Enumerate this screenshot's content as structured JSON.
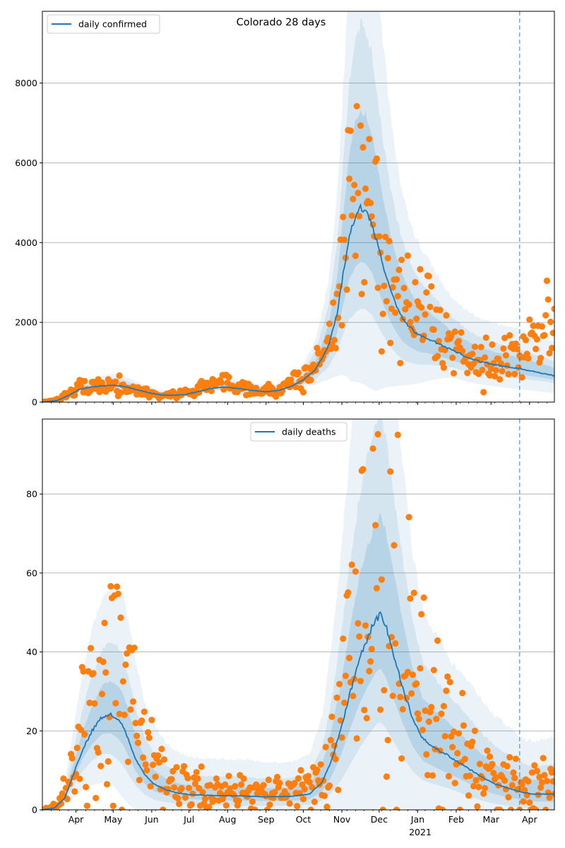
{
  "title": "Colorado 28 days",
  "colors": {
    "line": "#1f77b4",
    "band": "#1f77b4",
    "points": "#ff7f0e",
    "grid": "#b0b0b0",
    "vline": "#1f77b4"
  },
  "x_axis": {
    "range_days": [
      0,
      412
    ],
    "vline_day": 384,
    "month_ticks": [
      {
        "label": "Apr",
        "day": 27
      },
      {
        "label": "May",
        "day": 57
      },
      {
        "label": "Jun",
        "day": 88
      },
      {
        "label": "Jul",
        "day": 118
      },
      {
        "label": "Aug",
        "day": 149
      },
      {
        "label": "Sep",
        "day": 180
      },
      {
        "label": "Oct",
        "day": 210
      },
      {
        "label": "Nov",
        "day": 241
      },
      {
        "label": "Dec",
        "day": 271
      },
      {
        "label": "Jan",
        "day": 302
      },
      {
        "label": "Feb",
        "day": 333
      },
      {
        "label": "Mar",
        "day": 361
      },
      {
        "label": "Apr",
        "day": 392
      }
    ],
    "year_label": {
      "text": "2021",
      "day": 302
    }
  },
  "chart_data": [
    {
      "type": "line",
      "panel": "top",
      "title": "Colorado 28 days",
      "legend": [
        "daily confirmed"
      ],
      "legend_position": "top-left",
      "ylim": [
        0,
        9800
      ],
      "yticks": [
        0,
        2000,
        4000,
        6000,
        8000
      ],
      "grid": "y",
      "model_knots": [
        [
          0,
          0
        ],
        [
          12,
          40
        ],
        [
          20,
          150
        ],
        [
          30,
          320
        ],
        [
          40,
          380
        ],
        [
          50,
          410
        ],
        [
          57,
          420
        ],
        [
          65,
          400
        ],
        [
          75,
          320
        ],
        [
          85,
          240
        ],
        [
          95,
          180
        ],
        [
          105,
          170
        ],
        [
          115,
          190
        ],
        [
          125,
          260
        ],
        [
          135,
          340
        ],
        [
          145,
          380
        ],
        [
          150,
          370
        ],
        [
          160,
          330
        ],
        [
          170,
          290
        ],
        [
          180,
          260
        ],
        [
          190,
          290
        ],
        [
          200,
          390
        ],
        [
          210,
          560
        ],
        [
          220,
          820
        ],
        [
          230,
          1400
        ],
        [
          237,
          2200
        ],
        [
          242,
          3200
        ],
        [
          247,
          4200
        ],
        [
          252,
          4700
        ],
        [
          256,
          4850
        ],
        [
          260,
          4800
        ],
        [
          265,
          4500
        ],
        [
          270,
          3900
        ],
        [
          275,
          3300
        ],
        [
          280,
          2800
        ],
        [
          285,
          2400
        ],
        [
          290,
          2100
        ],
        [
          295,
          1900
        ],
        [
          300,
          1750
        ],
        [
          305,
          1650
        ],
        [
          310,
          1600
        ],
        [
          320,
          1450
        ],
        [
          330,
          1300
        ],
        [
          340,
          1150
        ],
        [
          350,
          1030
        ],
        [
          360,
          960
        ],
        [
          370,
          900
        ],
        [
          380,
          860
        ],
        [
          390,
          800
        ],
        [
          400,
          740
        ],
        [
          412,
          660
        ]
      ],
      "band_widths": [
        [
          [
            0,
            0.02
          ],
          [
            30,
            0.08
          ],
          [
            57,
            0.18
          ],
          [
            90,
            0.1
          ],
          [
            150,
            0.18
          ],
          [
            200,
            0.12
          ],
          [
            230,
            0.35
          ],
          [
            250,
            0.5
          ],
          [
            290,
            0.5
          ],
          [
            330,
            0.35
          ],
          [
            412,
            0.28
          ]
        ],
        [
          [
            0,
            0.05
          ],
          [
            30,
            0.18
          ],
          [
            57,
            0.35
          ],
          [
            90,
            0.25
          ],
          [
            150,
            0.32
          ],
          [
            200,
            0.25
          ],
          [
            230,
            0.7
          ],
          [
            250,
            0.95
          ],
          [
            290,
            0.9
          ],
          [
            330,
            0.6
          ],
          [
            412,
            0.5
          ]
        ],
        [
          [
            0,
            0.1
          ],
          [
            30,
            0.3
          ],
          [
            57,
            0.55
          ],
          [
            90,
            0.4
          ],
          [
            150,
            0.48
          ],
          [
            200,
            0.38
          ],
          [
            230,
            1.1
          ],
          [
            248,
            1.6
          ],
          [
            268,
            1.7
          ],
          [
            300,
            1.35
          ],
          [
            330,
            0.95
          ],
          [
            412,
            1.2
          ]
        ]
      ],
      "observed_knots": [
        [
          0,
          0
        ],
        [
          12,
          50
        ],
        [
          20,
          200
        ],
        [
          30,
          330
        ],
        [
          40,
          400
        ],
        [
          50,
          420
        ],
        [
          57,
          430
        ],
        [
          65,
          390
        ],
        [
          75,
          300
        ],
        [
          85,
          230
        ],
        [
          95,
          170
        ],
        [
          105,
          180
        ],
        [
          115,
          230
        ],
        [
          125,
          330
        ],
        [
          135,
          440
        ],
        [
          145,
          520
        ],
        [
          150,
          480
        ],
        [
          160,
          400
        ],
        [
          170,
          320
        ],
        [
          180,
          280
        ],
        [
          190,
          320
        ],
        [
          200,
          450
        ],
        [
          210,
          600
        ],
        [
          220,
          880
        ],
        [
          230,
          1600
        ],
        [
          237,
          2500
        ],
        [
          242,
          3500
        ],
        [
          247,
          4700
        ],
        [
          252,
          5200
        ],
        [
          256,
          5300
        ],
        [
          262,
          4900
        ],
        [
          268,
          4300
        ],
        [
          272,
          3800
        ],
        [
          278,
          3200
        ],
        [
          285,
          2700
        ],
        [
          290,
          2400
        ],
        [
          295,
          2200
        ],
        [
          300,
          2300
        ],
        [
          305,
          2500
        ],
        [
          310,
          2200
        ],
        [
          315,
          1900
        ],
        [
          320,
          1650
        ],
        [
          330,
          1450
        ],
        [
          340,
          1250
        ],
        [
          350,
          1100
        ],
        [
          360,
          1020
        ],
        [
          370,
          1070
        ],
        [
          380,
          1180
        ],
        [
          385,
          1150
        ],
        [
          390,
          1300
        ],
        [
          400,
          1550
        ],
        [
          406,
          1800
        ],
        [
          412,
          2000
        ]
      ],
      "observed_spread": 0.28,
      "seed": 7
    },
    {
      "type": "line",
      "panel": "bottom",
      "legend": [
        "daily deaths"
      ],
      "legend_position": "top-center",
      "ylim": [
        0,
        99
      ],
      "yticks": [
        0,
        20,
        40,
        60,
        80
      ],
      "grid": "y",
      "model_knots": [
        [
          0,
          0
        ],
        [
          10,
          0.5
        ],
        [
          18,
          3
        ],
        [
          25,
          9
        ],
        [
          32,
          15
        ],
        [
          40,
          20
        ],
        [
          48,
          23.5
        ],
        [
          55,
          24
        ],
        [
          60,
          23
        ],
        [
          65,
          21
        ],
        [
          70,
          17
        ],
        [
          75,
          13
        ],
        [
          82,
          9
        ],
        [
          90,
          6.5
        ],
        [
          100,
          5
        ],
        [
          110,
          4.2
        ],
        [
          120,
          3.8
        ],
        [
          140,
          3.6
        ],
        [
          160,
          3.5
        ],
        [
          180,
          3.3
        ],
        [
          200,
          3.4
        ],
        [
          215,
          4
        ],
        [
          225,
          7
        ],
        [
          232,
          12
        ],
        [
          240,
          20
        ],
        [
          248,
          30
        ],
        [
          255,
          38
        ],
        [
          262,
          44
        ],
        [
          268,
          48
        ],
        [
          272,
          49.5
        ],
        [
          276,
          47
        ],
        [
          282,
          40
        ],
        [
          290,
          31
        ],
        [
          298,
          23
        ],
        [
          306,
          18
        ],
        [
          315,
          16
        ],
        [
          325,
          14
        ],
        [
          335,
          12
        ],
        [
          345,
          10
        ],
        [
          355,
          8
        ],
        [
          365,
          6.5
        ],
        [
          375,
          5.5
        ],
        [
          385,
          4.5
        ],
        [
          395,
          4
        ],
        [
          412,
          4
        ]
      ],
      "band_widths": [
        [
          [
            0,
            0.2
          ],
          [
            20,
            0.25
          ],
          [
            55,
            0.35
          ],
          [
            90,
            0.5
          ],
          [
            160,
            0.6
          ],
          [
            230,
            0.6
          ],
          [
            270,
            0.5
          ],
          [
            330,
            0.6
          ],
          [
            412,
            0.9
          ]
        ],
        [
          [
            0,
            0.4
          ],
          [
            20,
            0.6
          ],
          [
            55,
            0.75
          ],
          [
            90,
            1.1
          ],
          [
            160,
            1.3
          ],
          [
            230,
            1.2
          ],
          [
            270,
            1.0
          ],
          [
            330,
            1.1
          ],
          [
            412,
            1.8
          ]
        ],
        [
          [
            0,
            0.8
          ],
          [
            20,
            1.2
          ],
          [
            55,
            1.3
          ],
          [
            90,
            2.2
          ],
          [
            160,
            2.5
          ],
          [
            230,
            2.3
          ],
          [
            270,
            1.8
          ],
          [
            330,
            1.8
          ],
          [
            412,
            3.5
          ]
        ]
      ],
      "observed_knots": [
        [
          0,
          0
        ],
        [
          12,
          1
        ],
        [
          20,
          6
        ],
        [
          28,
          14
        ],
        [
          35,
          22
        ],
        [
          42,
          28
        ],
        [
          50,
          33
        ],
        [
          57,
          35
        ],
        [
          62,
          30
        ],
        [
          68,
          24
        ],
        [
          75,
          17
        ],
        [
          82,
          12
        ],
        [
          90,
          9
        ],
        [
          100,
          7
        ],
        [
          110,
          6
        ],
        [
          120,
          5
        ],
        [
          140,
          5
        ],
        [
          160,
          5
        ],
        [
          180,
          4.5
        ],
        [
          200,
          4
        ],
        [
          215,
          5
        ],
        [
          225,
          8
        ],
        [
          232,
          13
        ],
        [
          240,
          21
        ],
        [
          248,
          33
        ],
        [
          255,
          42
        ],
        [
          262,
          52
        ],
        [
          268,
          60
        ],
        [
          272,
          62
        ],
        [
          276,
          58
        ],
        [
          282,
          50
        ],
        [
          290,
          40
        ],
        [
          298,
          32
        ],
        [
          306,
          26
        ],
        [
          315,
          22
        ],
        [
          325,
          19
        ],
        [
          335,
          16
        ],
        [
          345,
          13
        ],
        [
          355,
          11
        ],
        [
          365,
          9
        ],
        [
          375,
          7.5
        ],
        [
          385,
          6
        ],
        [
          395,
          5.5
        ],
        [
          412,
          6
        ]
      ],
      "observed_spread": 0.55,
      "seed": 13
    }
  ]
}
